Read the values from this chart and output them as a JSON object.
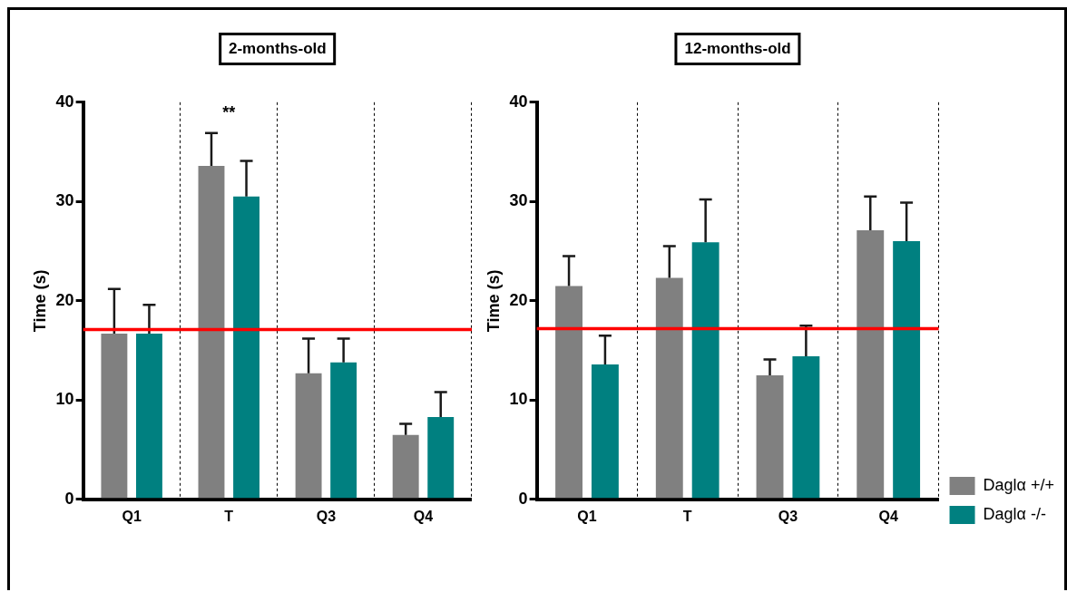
{
  "chart_data": [
    {
      "type": "bar",
      "title": "2-months-old",
      "ylabel": "Time (s)",
      "categories": [
        "Q1",
        "T",
        "Q3",
        "Q4"
      ],
      "series": [
        {
          "color": "#808080",
          "values": [
            16.7,
            33.6,
            12.7,
            6.5
          ],
          "errors": [
            [
              16.7,
              21.2
            ],
            [
              33.6,
              36.9
            ],
            [
              12.7,
              16.2
            ],
            [
              6.5,
              7.6
            ]
          ]
        },
        {
          "color": "#008080",
          "values": [
            16.7,
            30.5,
            13.8,
            8.3
          ],
          "errors": [
            [
              16.7,
              19.6
            ],
            [
              30.5,
              34.1
            ],
            [
              13.8,
              16.2
            ],
            [
              8.3,
              10.8
            ]
          ]
        }
      ],
      "ylim": [
        0,
        40
      ],
      "yticks": [
        0,
        10,
        20,
        30,
        40
      ],
      "grid": "x",
      "legend": false,
      "ref_lines": [
        {
          "axis": "y",
          "value": 17.1,
          "color": "#ff0000"
        }
      ],
      "annotations": [
        "**"
      ]
    },
    {
      "type": "bar",
      "title": "12-months-old",
      "ylabel": "Time (s)",
      "categories": [
        "Q1",
        "T",
        "Q3",
        "Q4"
      ],
      "series": [
        {
          "name": "Daglα +/+",
          "color": "#808080",
          "values": [
            21.5,
            22.3,
            12.5,
            27.1
          ],
          "errors": [
            [
              21.5,
              24.5
            ],
            [
              22.3,
              25.5
            ],
            [
              12.5,
              14.1
            ],
            [
              27.1,
              30.5
            ]
          ]
        },
        {
          "name": "Daglα -/-",
          "color": "#008080",
          "values": [
            13.6,
            25.9,
            14.4,
            26.0
          ],
          "errors": [
            [
              13.6,
              16.5
            ],
            [
              25.9,
              30.2
            ],
            [
              14.4,
              17.5
            ],
            [
              26.0,
              29.9
            ]
          ]
        }
      ],
      "ylim": [
        0,
        40
      ],
      "yticks": [
        0,
        10,
        20,
        30,
        40
      ],
      "grid": "x",
      "legend": "bottom right",
      "ref_lines": [
        {
          "axis": "y",
          "value": 17.2,
          "color": "#ff0000"
        }
      ]
    }
  ]
}
